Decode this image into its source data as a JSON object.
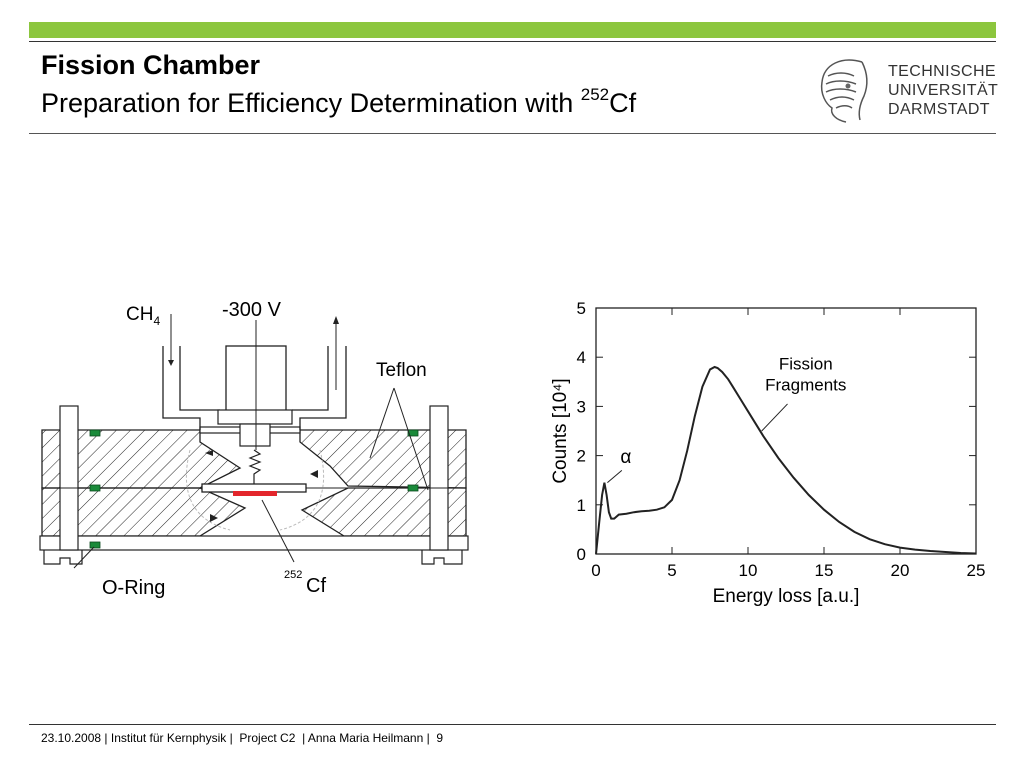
{
  "header": {
    "title": "Fission Chamber",
    "subtitle_prefix": "Preparation for Efficiency Determination with ",
    "subtitle_superscript": "252",
    "subtitle_suffix": "Cf",
    "accent_color": "#8cc63e",
    "logo": {
      "line1": "TECHNISCHE",
      "line2": "UNIVERSITÄT",
      "line3": "DARMSTADT"
    }
  },
  "diagram": {
    "labels": {
      "ch4": "CH",
      "ch4_sub": "4",
      "voltage": "-300 V",
      "teflon": "Teflon",
      "oring": "O-Ring",
      "cf_sup": "252",
      "cf": "Cf"
    },
    "colors": {
      "source": "#e3262c",
      "oring": "#1a8a3a"
    }
  },
  "chart_data": {
    "type": "line",
    "xlabel": "Energy loss [a.u.]",
    "ylabel": "Counts [10⁴]",
    "xlim": [
      0,
      25
    ],
    "ylim": [
      0,
      5
    ],
    "xticks": [
      "0",
      "5",
      "10",
      "15",
      "20",
      "25"
    ],
    "yticks": [
      "0",
      "1",
      "2",
      "3",
      "4",
      "5"
    ],
    "annotations": [
      {
        "text": "Fission",
        "text2": "Fragments"
      },
      {
        "text": "α"
      }
    ],
    "series": [
      {
        "x": [
          0,
          0.2,
          0.4,
          0.55,
          0.7,
          0.85,
          1.0,
          1.2,
          1.5,
          2.0,
          2.5,
          3.0,
          3.5,
          4.0,
          4.5,
          5.0,
          5.5,
          6.0,
          6.5,
          7.0,
          7.5,
          7.8,
          8.0,
          8.3,
          8.7,
          9.0,
          9.5,
          10,
          11,
          12,
          13,
          14,
          15,
          16,
          17,
          18,
          19,
          20,
          21,
          22,
          23,
          24,
          25
        ],
        "y": [
          0,
          0.6,
          1.2,
          1.45,
          1.2,
          0.85,
          0.72,
          0.72,
          0.8,
          0.82,
          0.85,
          0.87,
          0.88,
          0.9,
          0.95,
          1.1,
          1.5,
          2.1,
          2.8,
          3.4,
          3.75,
          3.8,
          3.78,
          3.7,
          3.55,
          3.4,
          3.15,
          2.9,
          2.4,
          1.95,
          1.55,
          1.2,
          0.9,
          0.65,
          0.45,
          0.3,
          0.2,
          0.13,
          0.09,
          0.06,
          0.04,
          0.02,
          0.01
        ]
      }
    ]
  },
  "footer": {
    "date": "23.10.2008",
    "institute": "Institut für Kernphysik",
    "project": "Project C2",
    "author": "Anna Maria Heilmann",
    "page": "9"
  }
}
